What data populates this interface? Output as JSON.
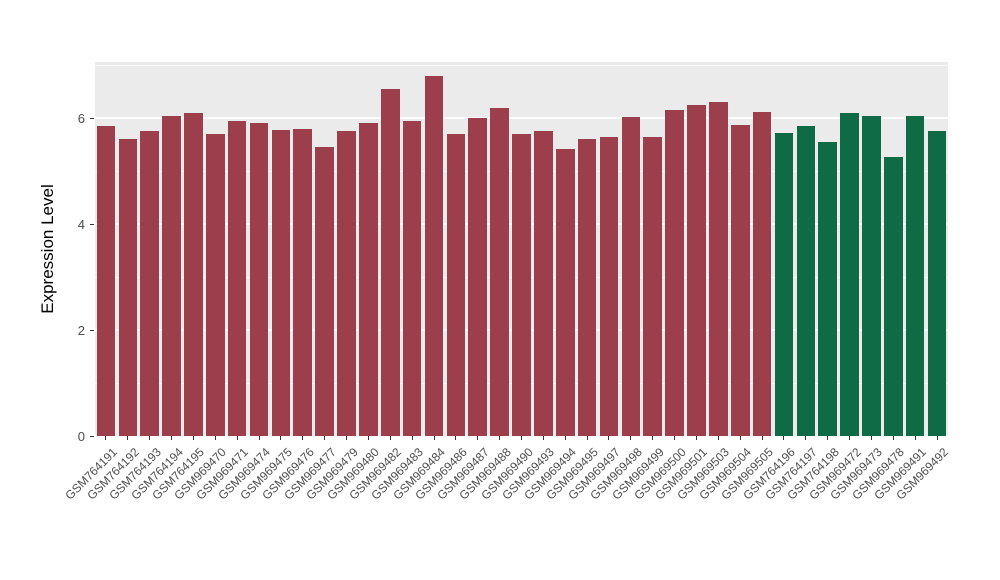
{
  "chart_data": {
    "type": "bar",
    "title": "",
    "xlabel": "",
    "ylabel": "Expression Level",
    "ylim": [
      0,
      7.06
    ],
    "yticks": [
      0,
      2,
      4,
      6
    ],
    "yticks_minor": [
      1,
      3,
      5,
      7
    ],
    "grid": "on",
    "legend": "none",
    "panel_bg": "#EBEBEB",
    "grid_color": "#FFFFFF",
    "bar_width_fraction": 0.85,
    "colors": {
      "red": "#9C3E4C",
      "green": "#0E6B45"
    },
    "bars": [
      {
        "label": "GSM764191",
        "value": 5.85,
        "group": "red"
      },
      {
        "label": "GSM764192",
        "value": 5.6,
        "group": "red"
      },
      {
        "label": "GSM764193",
        "value": 5.75,
        "group": "red"
      },
      {
        "label": "GSM764194",
        "value": 6.05,
        "group": "red"
      },
      {
        "label": "GSM764195",
        "value": 6.1,
        "group": "red"
      },
      {
        "label": "GSM969470",
        "value": 5.7,
        "group": "red"
      },
      {
        "label": "GSM969471",
        "value": 5.95,
        "group": "red"
      },
      {
        "label": "GSM969474",
        "value": 5.9,
        "group": "red"
      },
      {
        "label": "GSM969475",
        "value": 5.78,
        "group": "red"
      },
      {
        "label": "GSM969476",
        "value": 5.8,
        "group": "red"
      },
      {
        "label": "GSM969477",
        "value": 5.45,
        "group": "red"
      },
      {
        "label": "GSM969479",
        "value": 5.75,
        "group": "red"
      },
      {
        "label": "GSM969480",
        "value": 5.9,
        "group": "red"
      },
      {
        "label": "GSM969482",
        "value": 6.55,
        "group": "red"
      },
      {
        "label": "GSM969483",
        "value": 5.95,
        "group": "red"
      },
      {
        "label": "GSM969484",
        "value": 6.8,
        "group": "red"
      },
      {
        "label": "GSM969486",
        "value": 5.7,
        "group": "red"
      },
      {
        "label": "GSM969487",
        "value": 6.0,
        "group": "red"
      },
      {
        "label": "GSM969488",
        "value": 6.2,
        "group": "red"
      },
      {
        "label": "GSM969490",
        "value": 5.7,
        "group": "red"
      },
      {
        "label": "GSM969493",
        "value": 5.75,
        "group": "red"
      },
      {
        "label": "GSM969494",
        "value": 5.42,
        "group": "red"
      },
      {
        "label": "GSM969495",
        "value": 5.6,
        "group": "red"
      },
      {
        "label": "GSM969497",
        "value": 5.65,
        "group": "red"
      },
      {
        "label": "GSM969498",
        "value": 6.02,
        "group": "red"
      },
      {
        "label": "GSM969499",
        "value": 5.65,
        "group": "red"
      },
      {
        "label": "GSM969500",
        "value": 6.15,
        "group": "red"
      },
      {
        "label": "GSM969501",
        "value": 6.25,
        "group": "red"
      },
      {
        "label": "GSM969503",
        "value": 6.3,
        "group": "red"
      },
      {
        "label": "GSM969504",
        "value": 5.87,
        "group": "red"
      },
      {
        "label": "GSM969505",
        "value": 6.12,
        "group": "red"
      },
      {
        "label": "GSM764196",
        "value": 5.72,
        "group": "green"
      },
      {
        "label": "GSM764197",
        "value": 5.85,
        "group": "green"
      },
      {
        "label": "GSM764198",
        "value": 5.55,
        "group": "green"
      },
      {
        "label": "GSM969472",
        "value": 6.1,
        "group": "green"
      },
      {
        "label": "GSM969473",
        "value": 6.05,
        "group": "green"
      },
      {
        "label": "GSM969478",
        "value": 5.27,
        "group": "green"
      },
      {
        "label": "GSM969491",
        "value": 6.05,
        "group": "green"
      },
      {
        "label": "GSM969492",
        "value": 5.75,
        "group": "green"
      }
    ]
  }
}
